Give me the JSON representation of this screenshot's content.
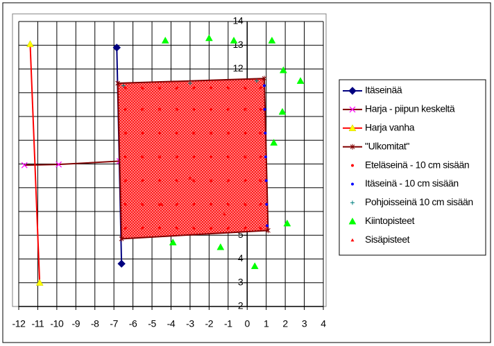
{
  "chart_data": {
    "type": "scatter",
    "xlim": [
      -12,
      4
    ],
    "ylim": [
      2,
      14
    ],
    "xticks": [
      -12,
      -11,
      -10,
      -9,
      -8,
      -7,
      -6,
      -5,
      -4,
      -3,
      -2,
      -1,
      0,
      1,
      2,
      3,
      4
    ],
    "yticks": [
      2,
      3,
      4,
      5,
      6,
      7,
      8,
      9,
      10,
      11,
      12,
      13,
      14
    ],
    "grid": true,
    "legend": "right",
    "series": [
      {
        "name": "Itäseinää",
        "color": "#000080",
        "marker": "diamond",
        "line": true,
        "x": [
          -6.85,
          -6.6
        ],
        "y": [
          12.9,
          3.8
        ]
      },
      {
        "name": "Harja - piipun keskeltä",
        "color": "#800000",
        "marker": "x",
        "marker_color": "#ff00ff",
        "line": true,
        "x": [
          -11.7,
          -9.9,
          -6.7
        ],
        "y": [
          7.95,
          7.98,
          8.12
        ]
      },
      {
        "name": "Harja vanha",
        "color": "#ff0000",
        "marker": "triangle",
        "marker_color": "#ffff00",
        "line": true,
        "x": [
          -11.4,
          -10.9
        ],
        "y": [
          13.05,
          3.0
        ]
      },
      {
        "name": "\"Ulkomitat\"",
        "color": "#800000",
        "marker": "star",
        "line": true,
        "fill": "#ff0000",
        "x": [
          -6.8,
          0.9,
          1.1,
          -6.6,
          -6.8
        ],
        "y": [
          11.4,
          11.6,
          5.2,
          4.85,
          11.4
        ]
      },
      {
        "name": "Eteläseinä - 10 cm sisään",
        "color": "#ff0000",
        "marker": "dot",
        "line": false,
        "x": [
          -6.4,
          -5.5,
          -4.6,
          -3.7,
          -2.8,
          -1.9,
          -1.0,
          -0.1,
          0.7,
          -6.4,
          -5.5,
          -4.6,
          -3.7,
          -2.8,
          -1.9,
          -1.0,
          -0.1,
          0.7,
          -6.4,
          -5.5,
          -4.6,
          -3.7,
          -2.8,
          -1.9,
          -1.0,
          -0.1,
          0.7,
          -6.4,
          -5.5,
          -4.6,
          -3.7,
          -2.8,
          -1.9,
          -1.0,
          -0.1,
          0.7,
          -6.4,
          -5.5,
          -4.6,
          -3.7,
          -2.8,
          -1.9,
          -1.0,
          -0.1,
          0.7,
          -6.4,
          -5.5,
          -4.6,
          -3.7,
          -2.8,
          -1.9,
          -1.0,
          -0.1,
          0.7,
          -6.4,
          -5.5,
          -4.6,
          -3.7,
          -2.8,
          -1.9,
          -1.0,
          -0.1,
          0.7
        ],
        "y": [
          5.3,
          5.3,
          5.3,
          5.3,
          5.3,
          5.3,
          5.3,
          5.3,
          5.3,
          6.3,
          6.3,
          6.3,
          6.3,
          6.3,
          6.3,
          6.3,
          6.3,
          6.3,
          7.3,
          7.3,
          7.3,
          7.3,
          7.3,
          7.3,
          7.3,
          7.3,
          7.3,
          8.3,
          8.3,
          8.3,
          8.3,
          8.3,
          8.3,
          8.3,
          8.3,
          8.3,
          9.3,
          9.3,
          9.3,
          9.3,
          9.3,
          9.3,
          9.3,
          9.3,
          9.3,
          10.3,
          10.3,
          10.3,
          10.3,
          10.3,
          10.3,
          10.3,
          10.3,
          10.3,
          11.2,
          11.2,
          11.2,
          11.2,
          11.2,
          11.2,
          11.2,
          11.2,
          11.2
        ]
      },
      {
        "name": "Itäseinä - 10 cm sisään",
        "color": "#0000ff",
        "marker": "dot",
        "line": false,
        "x": [
          0.9,
          0.92,
          0.95,
          0.97,
          1.0,
          1.02,
          1.05
        ],
        "y": [
          11.3,
          10.3,
          9.3,
          8.3,
          7.3,
          6.3,
          5.4
        ]
      },
      {
        "name": "Pohjoisseinä 10 cm sisään",
        "color": "#008080",
        "marker": "plus",
        "line": false,
        "x": [
          -6.5,
          -3.0,
          0.5
        ],
        "y": [
          11.3,
          11.4,
          11.5
        ]
      },
      {
        "name": "Kiintopisteet",
        "color": "#00ff00",
        "marker": "triangle",
        "line": false,
        "x": [
          -4.3,
          -2.0,
          -0.7,
          1.3,
          1.9,
          2.8,
          1.85,
          1.4,
          2.1,
          -3.9,
          -1.4,
          0.4
        ],
        "y": [
          13.2,
          13.3,
          13.2,
          13.2,
          11.95,
          11.5,
          10.2,
          8.9,
          5.5,
          4.7,
          4.5,
          3.7
        ]
      },
      {
        "name": "Sisäpisteet",
        "color": "#ff0000",
        "marker": "small-triangle",
        "line": false,
        "x": [
          -4.5,
          -3.0,
          -1.2
        ],
        "y": [
          6.3,
          7.4,
          5.9
        ]
      }
    ]
  }
}
